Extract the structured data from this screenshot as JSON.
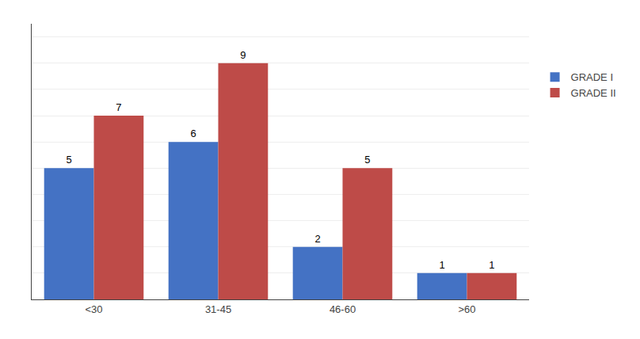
{
  "chart_data": {
    "type": "bar",
    "categories": [
      "<30",
      "31-45",
      "46-60",
      ">60"
    ],
    "series": [
      {
        "name": "GRADE I",
        "color": "#4472C4",
        "values": [
          5,
          6,
          2,
          1
        ]
      },
      {
        "name": "GRADE II",
        "color": "#BE4B48",
        "values": [
          7,
          9,
          5,
          1
        ]
      }
    ],
    "ylim": [
      0,
      10.5
    ],
    "yticks": [
      1,
      2,
      3,
      4,
      5,
      6,
      7,
      8,
      9,
      10
    ],
    "grid": true,
    "data_labels": true,
    "tick_labels": "x",
    "legend": "right"
  }
}
